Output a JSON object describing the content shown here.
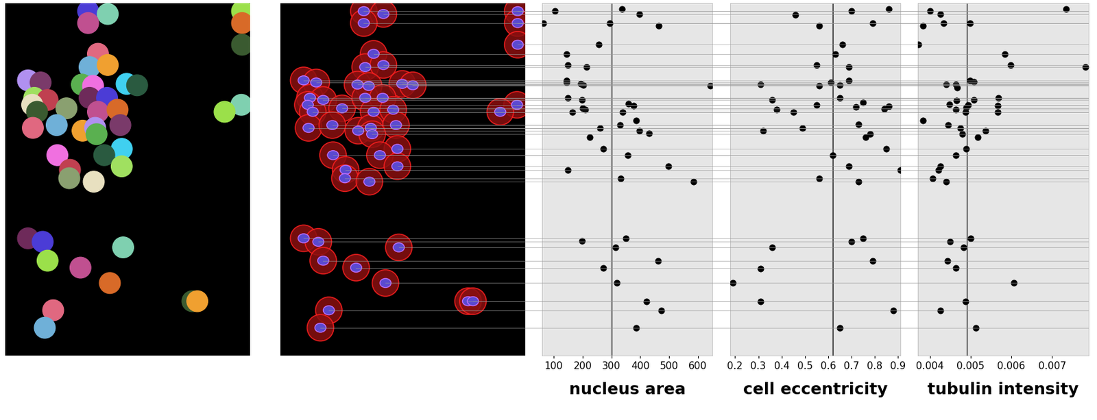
{
  "chart_data": [
    {
      "type": "scatter",
      "xlabel": "nucleus area",
      "color": "#000000",
      "grid": false,
      "tick_labels": "x",
      "reference": 300,
      "xlim": [
        60,
        650
      ],
      "xticks": [
        100,
        200,
        300,
        400,
        500,
        600
      ],
      "ylim": [
        509,
        5
      ],
      "x": [
        105,
        336,
        398,
        64,
        295,
        464,
        257,
        145,
        148,
        214,
        145,
        145,
        193,
        202,
        643,
        148,
        198,
        360,
        376,
        200,
        210,
        164,
        340,
        260,
        331,
        386,
        398,
        431,
        226,
        271,
        357,
        498,
        148,
        333,
        586,
        350,
        198,
        314,
        462,
        271,
        319,
        421,
        474,
        386
      ],
      "y": [
        16,
        13,
        20,
        33,
        33,
        37,
        64,
        77,
        93,
        96,
        115,
        118,
        120,
        122,
        123,
        140,
        143,
        148,
        151,
        155,
        157,
        160,
        160,
        183,
        179,
        172,
        187,
        191,
        196,
        213,
        222,
        238,
        243,
        255,
        260,
        341,
        345,
        354,
        373,
        383,
        405,
        431,
        444,
        469
      ]
    },
    {
      "type": "scatter",
      "xlabel": "cell eccentricity",
      "color": "#000000",
      "grid": false,
      "tick_labels": "x",
      "reference": 0.62,
      "xlim": [
        0.18,
        0.91
      ],
      "xticks": [
        0.2,
        0.3,
        0.4,
        0.5,
        0.6,
        0.7,
        0.8,
        0.9
      ],
      "ylim": [
        509,
        5
      ],
      "x": [
        0.7,
        0.86,
        0.46,
        0.56,
        0.79,
        0.66,
        0.63,
        0.55,
        0.69,
        0.69,
        0.61,
        0.31,
        0.56,
        0.65,
        0.36,
        0.55,
        0.75,
        0.38,
        0.45,
        0.65,
        0.86,
        0.84,
        0.72,
        0.73,
        0.49,
        0.32,
        0.78,
        0.76,
        0.85,
        0.62,
        0.69,
        0.91,
        0.56,
        0.73,
        0.75,
        0.7,
        0.36,
        0.79,
        0.31,
        0.19,
        0.31,
        0.88,
        0.65
      ],
      "y": [
        16,
        13,
        21,
        37,
        33,
        64,
        77,
        93,
        96,
        115,
        118,
        121,
        123,
        122,
        143,
        150,
        147,
        157,
        160,
        140,
        152,
        156,
        153,
        178,
        183,
        187,
        192,
        196,
        213,
        222,
        238,
        243,
        255,
        260,
        341,
        346,
        354,
        373,
        384,
        405,
        431,
        444,
        469
      ]
    },
    {
      "type": "scatter",
      "xlabel": "tubulin intensity",
      "color": "#000000",
      "grid": false,
      "tick_labels": "x",
      "reference": 0.0049,
      "xlim": [
        0.0037,
        0.0079
      ],
      "xticks": [
        0.004,
        0.005,
        0.006,
        0.007
      ],
      "ylim": [
        509,
        5
      ],
      "x": [
        0.00735,
        0.004,
        0.00425,
        0.00383,
        0.00434,
        0.00499,
        0.00372,
        0.00584,
        0.00598,
        0.00782,
        0.00499,
        0.00507,
        0.0044,
        0.00464,
        0.00467,
        0.00568,
        0.00507,
        0.00465,
        0.00447,
        0.00494,
        0.00566,
        0.00566,
        0.00489,
        0.00487,
        0.00464,
        0.00382,
        0.00445,
        0.00475,
        0.00536,
        0.0048,
        0.00517,
        0.00489,
        0.00464,
        0.00425,
        0.0042,
        0.00407,
        0.00439,
        0.005,
        0.00449,
        0.00482,
        0.00442,
        0.00464,
        0.00606,
        0.00487,
        0.00425,
        0.00512
      ],
      "y": [
        13,
        16,
        20,
        37,
        33,
        33,
        64,
        77,
        93,
        96,
        115,
        117,
        121,
        121,
        125,
        140,
        143,
        144,
        149,
        150,
        151,
        160,
        154,
        160,
        157,
        172,
        179,
        183,
        187,
        192,
        196,
        213,
        222,
        238,
        243,
        255,
        260,
        341,
        346,
        354,
        373,
        383,
        405,
        431,
        444,
        469
      ]
    }
  ],
  "image": {
    "cells": [
      [
        119,
        16
      ],
      [
        147,
        20
      ],
      [
        339,
        16
      ],
      [
        119,
        33
      ],
      [
        339,
        33
      ],
      [
        339,
        64
      ],
      [
        133,
        77
      ],
      [
        121,
        96
      ],
      [
        147,
        93
      ],
      [
        33,
        115
      ],
      [
        51,
        118
      ],
      [
        110,
        121
      ],
      [
        126,
        123
      ],
      [
        174,
        120
      ],
      [
        189,
        122
      ],
      [
        42,
        140
      ],
      [
        61,
        143
      ],
      [
        88,
        155
      ],
      [
        39,
        150
      ],
      [
        121,
        140
      ],
      [
        146,
        140
      ],
      [
        338,
        150
      ],
      [
        314,
        160
      ],
      [
        133,
        160
      ],
      [
        161,
        157
      ],
      [
        46,
        160
      ],
      [
        40,
        183
      ],
      [
        74,
        179
      ],
      [
        111,
        187
      ],
      [
        129,
        183
      ],
      [
        165,
        179
      ],
      [
        131,
        192
      ],
      [
        75,
        222
      ],
      [
        167,
        213
      ],
      [
        142,
        222
      ],
      [
        167,
        238
      ],
      [
        93,
        243
      ],
      [
        92,
        255
      ],
      [
        127,
        260
      ],
      [
        33,
        341
      ],
      [
        54,
        346
      ],
      [
        169,
        354
      ],
      [
        61,
        373
      ],
      [
        108,
        383
      ],
      [
        150,
        405
      ],
      [
        268,
        431
      ],
      [
        69,
        444
      ],
      [
        57,
        469
      ],
      [
        275,
        431
      ]
    ]
  }
}
